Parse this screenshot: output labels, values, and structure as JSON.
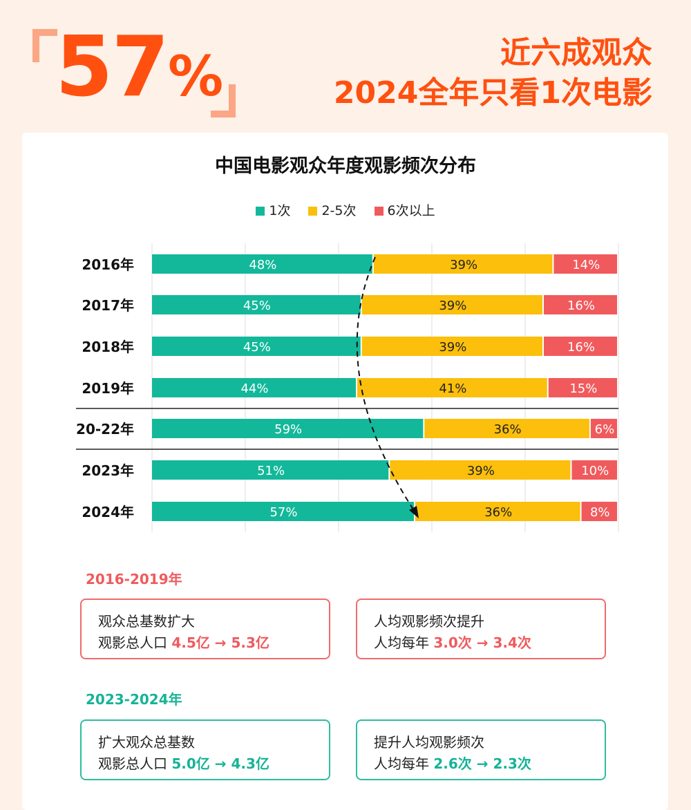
{
  "header": {
    "big_number": "57",
    "big_unit": "%",
    "headline_1": "近六成观众",
    "headline_2": "2024全年只看1次电影"
  },
  "colors": {
    "accent": "#ff5010",
    "teal": "#13b89a",
    "yellow": "#fbbf0c",
    "red": "#f05a5c"
  },
  "chart_data": {
    "type": "bar",
    "orientation": "horizontal-stacked-100",
    "title": "中国电影观众年度观影频次分布",
    "legend_position": "top",
    "categories": [
      "2016年",
      "2017年",
      "2018年",
      "2019年",
      "20-22年",
      "2023年",
      "2024年"
    ],
    "series": [
      {
        "name": "1次",
        "color": "#13b89a",
        "values": [
          48,
          45,
          45,
          44,
          59,
          51,
          57
        ]
      },
      {
        "name": "2-5次",
        "color": "#fbbf0c",
        "values": [
          39,
          39,
          39,
          41,
          36,
          39,
          36
        ]
      },
      {
        "name": "6次以上",
        "color": "#f05a5c",
        "values": [
          14,
          16,
          16,
          15,
          6,
          10,
          8
        ]
      }
    ],
    "grid": true
  },
  "notes": {
    "period_1": {
      "label": "2016-2019年",
      "boxes": [
        {
          "title": "观众总基数扩大",
          "prefix": "观影总人口",
          "from": "4.5亿",
          "arrow": "→",
          "to": "5.3亿"
        },
        {
          "title": "人均观影频次提升",
          "prefix": "人均每年",
          "from": "3.0次",
          "arrow": "→",
          "to": "3.4次"
        }
      ]
    },
    "period_2": {
      "label": "2023-2024年",
      "boxes": [
        {
          "title": "扩大观众总基数",
          "prefix": "观影总人口",
          "from": "5.0亿",
          "arrow": "→",
          "to": "4.3亿"
        },
        {
          "title": "提升人均观影频次",
          "prefix": "人均每年",
          "from": "2.6次",
          "arrow": "→",
          "to": "2.3次"
        }
      ]
    }
  }
}
